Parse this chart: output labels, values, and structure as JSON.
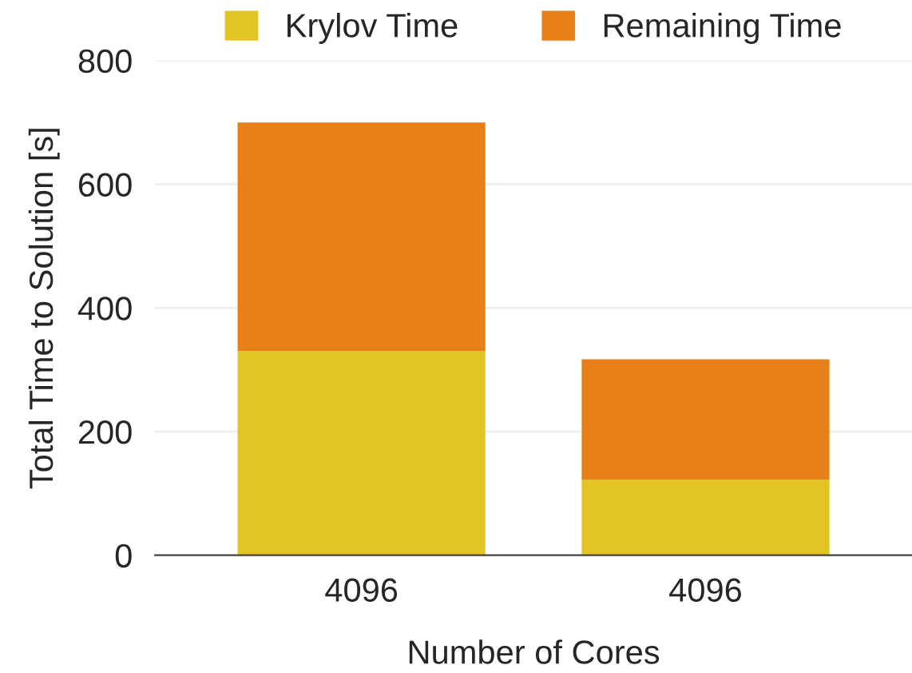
{
  "chart_data": {
    "type": "bar",
    "stacked": true,
    "xlabel": "Number of Cores",
    "ylabel": "Total Time to Solution [s]",
    "categories": [
      "4096",
      "4096"
    ],
    "series": [
      {
        "name": "Krylov Time",
        "color": "#e2c424",
        "values": [
          330,
          122
        ]
      },
      {
        "name": "Remaining Time",
        "color": "#e8801a",
        "values": [
          370,
          195
        ]
      }
    ],
    "ylim": [
      0,
      800
    ],
    "yticks": [
      0,
      200,
      400,
      600,
      800
    ],
    "grid": "y",
    "legend": "top"
  }
}
